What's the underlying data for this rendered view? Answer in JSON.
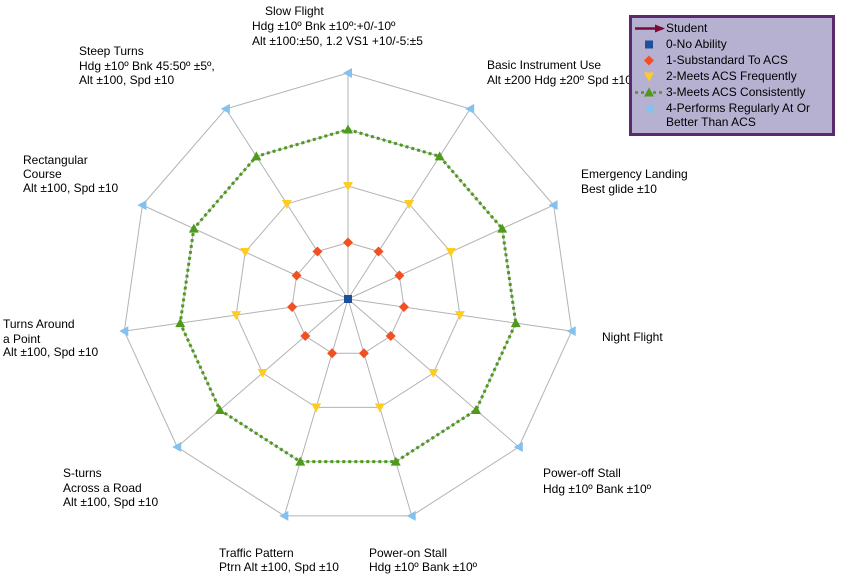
{
  "chart_data": {
    "type": "radar",
    "categories": [
      [
        "Slow Flight",
        "Hdg ±10º Bnk ±10º:+0/-10º",
        "Alt ±100:±50, 1.2 VS1 +10/-5:±5"
      ],
      [
        "Basic Instrument Use",
        "Alt ±200 Hdg ±20º Spd ±10"
      ],
      [
        "Emergency Landing",
        "Best glide ±10"
      ],
      [
        "Night Flight"
      ],
      [
        "Power-off Stall",
        "Hdg ±10º Bank ±10º"
      ],
      [
        "Power-on Stall",
        "Hdg ±10º Bank ±10º"
      ],
      [
        "Traffic Pattern",
        "Ptrn Alt ±100, Spd ±10"
      ],
      [
        "S-turns",
        "Across a Road",
        "Alt ±100, Spd ±10"
      ],
      [
        "Turns Around",
        "a Point",
        "Alt ±100,  Spd ±10"
      ],
      [
        "Rectangular",
        "Course",
        "Alt ±100,  Spd ±10"
      ],
      [
        "Steep Turns",
        "Hdg ±10º Bnk 45:50º ±5º,",
        "Alt ±100,  Spd ±10"
      ]
    ],
    "series": [
      {
        "name": "Student",
        "color": "#7b0a35",
        "marker": "arrow",
        "line": "solid",
        "values": [
          null,
          null,
          null,
          null,
          null,
          null,
          null,
          null,
          null,
          null,
          null
        ]
      },
      {
        "name": "0-No Ability",
        "color": "#1f4e9c",
        "marker": "square",
        "line": "none",
        "values": [
          0,
          0,
          0,
          0,
          0,
          0,
          0,
          0,
          0,
          0,
          0
        ]
      },
      {
        "name": "1-Substandard To ACS",
        "color": "#f25022",
        "marker": "diamond",
        "line": "none",
        "values": [
          1,
          1,
          1,
          1,
          1,
          1,
          1,
          1,
          1,
          1,
          1
        ]
      },
      {
        "name": "2-Meets ACS Frequently",
        "color": "#ffcc22",
        "marker": "triangle-down",
        "line": "none",
        "values": [
          2,
          2,
          2,
          2,
          2,
          2,
          2,
          2,
          2,
          2,
          2
        ]
      },
      {
        "name": "3-Meets ACS Consistently",
        "color": "#4e9a1e",
        "marker": "triangle-up",
        "line": "dotted",
        "values": [
          3,
          3,
          3,
          3,
          3,
          3,
          3,
          3,
          3,
          3,
          3
        ]
      },
      {
        "name": "4-Performs Regularly At Or Better Than ACS",
        "color": "#83c1ee",
        "marker": "triangle-left",
        "line": "none",
        "values": [
          4,
          4,
          4,
          4,
          4,
          4,
          4,
          4,
          4,
          4,
          4
        ]
      }
    ],
    "rlim": [
      0,
      4
    ],
    "rticks": [
      0,
      1,
      2,
      3,
      4
    ],
    "grid": true,
    "legend": "upper right"
  }
}
